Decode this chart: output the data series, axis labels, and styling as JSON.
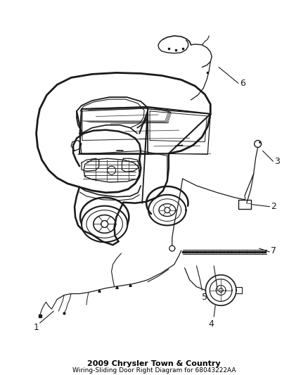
{
  "title": "2009 Chrysler Town & Country",
  "subtitle": "Wiring-Sliding Door Right Diagram for 68043222AA",
  "background_color": "#ffffff",
  "line_color": "#1a1a1a",
  "label_color": "#000000",
  "fig_width": 4.38,
  "fig_height": 5.33,
  "dpi": 100,
  "title_fontsize": 8.0,
  "subtitle_fontsize": 6.5
}
